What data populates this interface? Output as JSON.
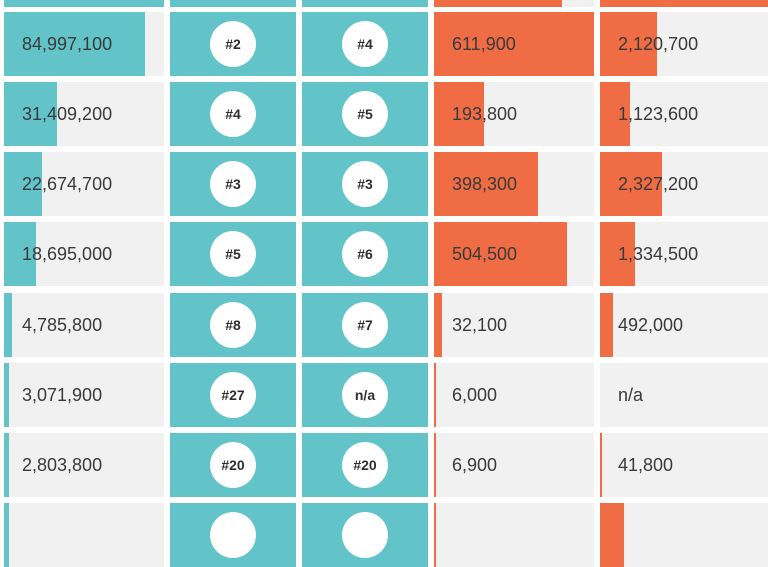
{
  "colors": {
    "teal": "#62c4c9",
    "orange": "#ef6c45",
    "track": "#f1f1f1"
  },
  "rows": [
    {
      "c1": {
        "label": "",
        "fill": 1.0
      },
      "c2": "",
      "c3": "",
      "c4": {
        "label": "",
        "fill": 0.8
      },
      "c5": {
        "label": "",
        "fill": 1.0
      }
    },
    {
      "c1": {
        "label": "84,997,100",
        "fill": 0.88
      },
      "c2": "#2",
      "c3": "#4",
      "c4": {
        "label": "611,900",
        "fill": 1.0
      },
      "c5": {
        "label": "2,120,700",
        "fill": 0.34
      }
    },
    {
      "c1": {
        "label": "31,409,200",
        "fill": 0.33
      },
      "c2": "#4",
      "c3": "#5",
      "c4": {
        "label": "193,800",
        "fill": 0.31
      },
      "c5": {
        "label": "1,123,600",
        "fill": 0.18
      }
    },
    {
      "c1": {
        "label": "22,674,700",
        "fill": 0.24
      },
      "c2": "#3",
      "c3": "#3",
      "c4": {
        "label": "398,300",
        "fill": 0.65
      },
      "c5": {
        "label": "2,327,200",
        "fill": 0.37
      }
    },
    {
      "c1": {
        "label": "18,695,000",
        "fill": 0.2
      },
      "c2": "#5",
      "c3": "#6",
      "c4": {
        "label": "504,500",
        "fill": 0.83
      },
      "c5": {
        "label": "1,334,500",
        "fill": 0.21
      }
    },
    {
      "c1": {
        "label": "4,785,800",
        "fill": 0.05
      },
      "c2": "#8",
      "c3": "#7",
      "c4": {
        "label": "32,100",
        "fill": 0.05
      },
      "c5": {
        "label": "492,000",
        "fill": 0.08
      }
    },
    {
      "c1": {
        "label": "3,071,900",
        "fill": 0.03
      },
      "c2": "#27",
      "c3": "n/a",
      "c4": {
        "label": "6,000",
        "fill": 0.01
      },
      "c5": {
        "label": "n/a",
        "fill": 0
      }
    },
    {
      "c1": {
        "label": "2,803,800",
        "fill": 0.03
      },
      "c2": "#20",
      "c3": "#20",
      "c4": {
        "label": "6,900",
        "fill": 0.01
      },
      "c5": {
        "label": "41,800",
        "fill": 0.01
      }
    },
    {
      "c1": {
        "label": "",
        "fill": 0.03
      },
      "c2": "",
      "c3": "",
      "c4": {
        "label": "",
        "fill": 0.01
      },
      "c5": {
        "label": "",
        "fill": 0.14
      }
    }
  ]
}
